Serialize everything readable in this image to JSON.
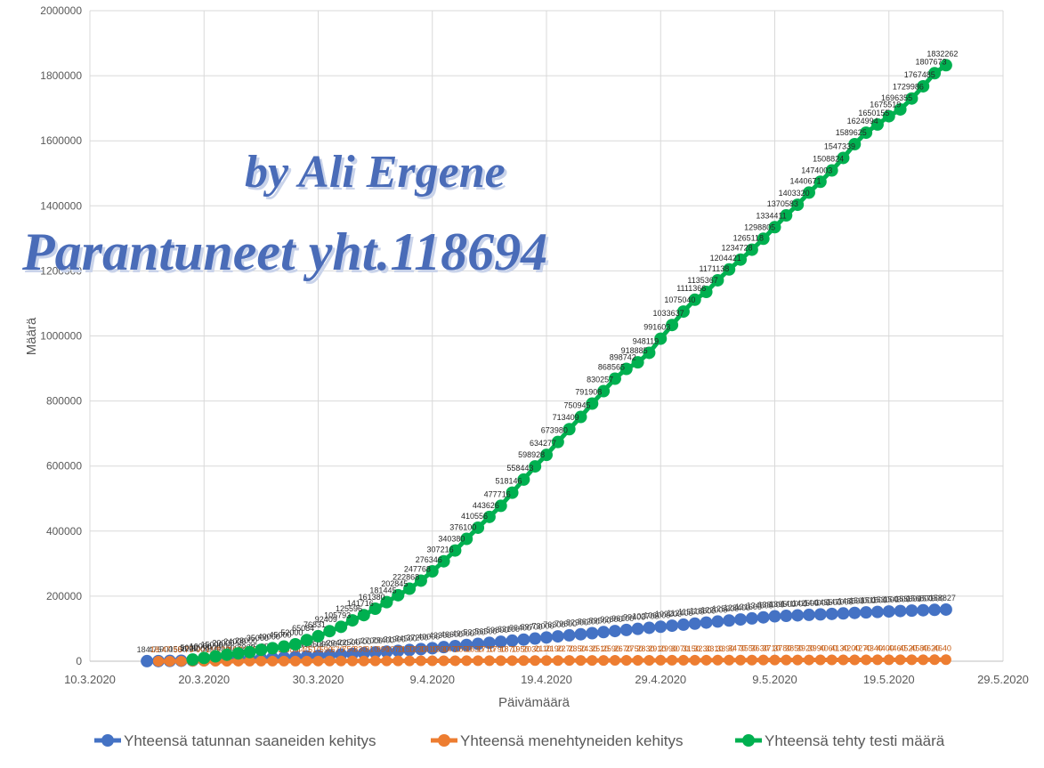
{
  "chart_data": {
    "type": "line",
    "x_label": "Päivämäärä",
    "y_label": "Määrä",
    "annotations": [
      "by Ali Ergene",
      "Parantuneet yht.118694"
    ],
    "x": [
      "15.3.2020",
      "16.3.2020",
      "17.3.2020",
      "18.3.2020",
      "19.3.2020",
      "20.3.2020",
      "21.3.2020",
      "22.3.2020",
      "23.3.2020",
      "24.3.2020",
      "25.3.2020",
      "26.3.2020",
      "27.3.2020",
      "28.3.2020",
      "29.3.2020",
      "30.3.2020",
      "31.3.2020",
      "1.4.2020",
      "2.4.2020",
      "3.4.2020",
      "4.4.2020",
      "5.4.2020",
      "6.4.2020",
      "7.4.2020",
      "8.4.2020",
      "9.4.2020",
      "10.4.2020",
      "11.4.2020",
      "12.4.2020",
      "13.4.2020",
      "14.4.2020",
      "15.4.2020",
      "16.4.2020",
      "17.4.2020",
      "18.4.2020",
      "19.4.2020",
      "20.4.2020",
      "21.4.2020",
      "22.4.2020",
      "23.4.2020",
      "24.4.2020",
      "25.4.2020",
      "26.4.2020",
      "27.4.2020",
      "28.4.2020",
      "29.4.2020",
      "30.4.2020",
      "1.5.2020",
      "2.5.2020",
      "3.5.2020",
      "4.5.2020",
      "5.5.2020",
      "6.5.2020",
      "7.5.2020",
      "8.5.2020",
      "9.5.2020",
      "10.5.2020",
      "11.5.2020",
      "12.5.2020",
      "13.5.2020",
      "14.5.2020",
      "15.5.2020",
      "16.5.2020",
      "17.5.2020",
      "18.5.2020",
      "19.5.2020",
      "20.5.2020",
      "21.5.2020",
      "22.5.2020",
      "23.5.2020",
      "24.5.2020"
    ],
    "series": [
      {
        "name": "Yhteensä tatunnan saaneiden kehitys",
        "color": "#4472c4",
        "label_color": "#404040",
        "values": [
          184,
          475,
          900,
          1500,
          2200,
          3000,
          3900,
          4900,
          6000,
          7200,
          8500,
          9900,
          11400,
          13000,
          14700,
          16500,
          18400,
          20400,
          22500,
          24700,
          27000,
          29400,
          31900,
          34500,
          37200,
          40000,
          43300,
          46600,
          49900,
          53200,
          56500,
          59800,
          63100,
          66400,
          69700,
          73000,
          76300,
          79600,
          82900,
          86200,
          89500,
          92800,
          96100,
          99400,
          102700,
          106000,
          109200,
          112400,
          115600,
          118800,
          122000,
          125200,
          128400,
          131600,
          134800,
          138000,
          139500,
          141000,
          142500,
          144000,
          145500,
          147000,
          148500,
          150000,
          151500,
          153000,
          154300,
          155600,
          156800,
          157900,
          158827
        ]
      },
      {
        "name": "Yhteensä menehtyneiden kehitys",
        "color": "#ed7d31",
        "label_color": "#c55a11",
        "values": [
          null,
          18,
          47,
          58,
          75,
          90,
          110,
          130,
          160,
          190,
          230,
          270,
          320,
          380,
          440,
          510,
          590,
          670,
          750,
          830,
          910,
          990,
          1070,
          1150,
          1230,
          1310,
          1390,
          1470,
          1550,
          1630,
          1710,
          1790,
          1870,
          1950,
          2030,
          2110,
          2190,
          2270,
          2350,
          2430,
          2510,
          2590,
          2670,
          2750,
          2830,
          2910,
          2990,
          3070,
          3150,
          3230,
          3310,
          3390,
          3470,
          3550,
          3630,
          3710,
          3780,
          3850,
          3920,
          3990,
          4060,
          4130,
          4200,
          4270,
          4340,
          4400,
          4460,
          4520,
          4580,
          4620,
          4640
        ]
      },
      {
        "name": "Yhteensä tehty testi määrä",
        "color": "#00b050",
        "label_color": "#262626",
        "values": [
          null,
          null,
          null,
          null,
          5000,
          10000,
          15000,
          20000,
          24000,
          28000,
          35000,
          40000,
          45000,
          52000,
          65084,
          76831,
          92409,
          105793,
          125596,
          141716,
          161380,
          181445,
          202845,
          222868,
          247768,
          276346,
          307216,
          340380,
          376100,
          410556,
          443626,
          477716,
          518146,
          558443,
          598928,
          634277,
          673980,
          713409,
          750945,
          791908,
          830257,
          868565,
          898742,
          918885,
          948119,
          991603,
          1033637,
          1075040,
          1111366,
          1135367,
          1171138,
          1204421,
          1234728,
          1265118,
          1298805,
          1334411,
          1370583,
          1403320,
          1440671,
          1474003,
          1508824,
          1547339,
          1589625,
          1624994,
          1650155,
          1675519,
          1696355,
          1729986,
          1767485,
          1807673,
          1832262
        ]
      }
    ],
    "xlim": [
      "10.3.2020",
      "29.5.2020"
    ],
    "xticks": [
      "10.3.2020",
      "20.3.2020",
      "30.3.2020",
      "9.4.2020",
      "19.4.2020",
      "29.4.2020",
      "9.5.2020",
      "19.5.2020",
      "29.5.2020"
    ],
    "ylim": [
      0,
      2000000
    ],
    "yticks": [
      0,
      200000,
      400000,
      600000,
      800000,
      1000000,
      1200000,
      1400000,
      1600000,
      1800000,
      2000000
    ],
    "grid": true,
    "legend": "bottom"
  }
}
